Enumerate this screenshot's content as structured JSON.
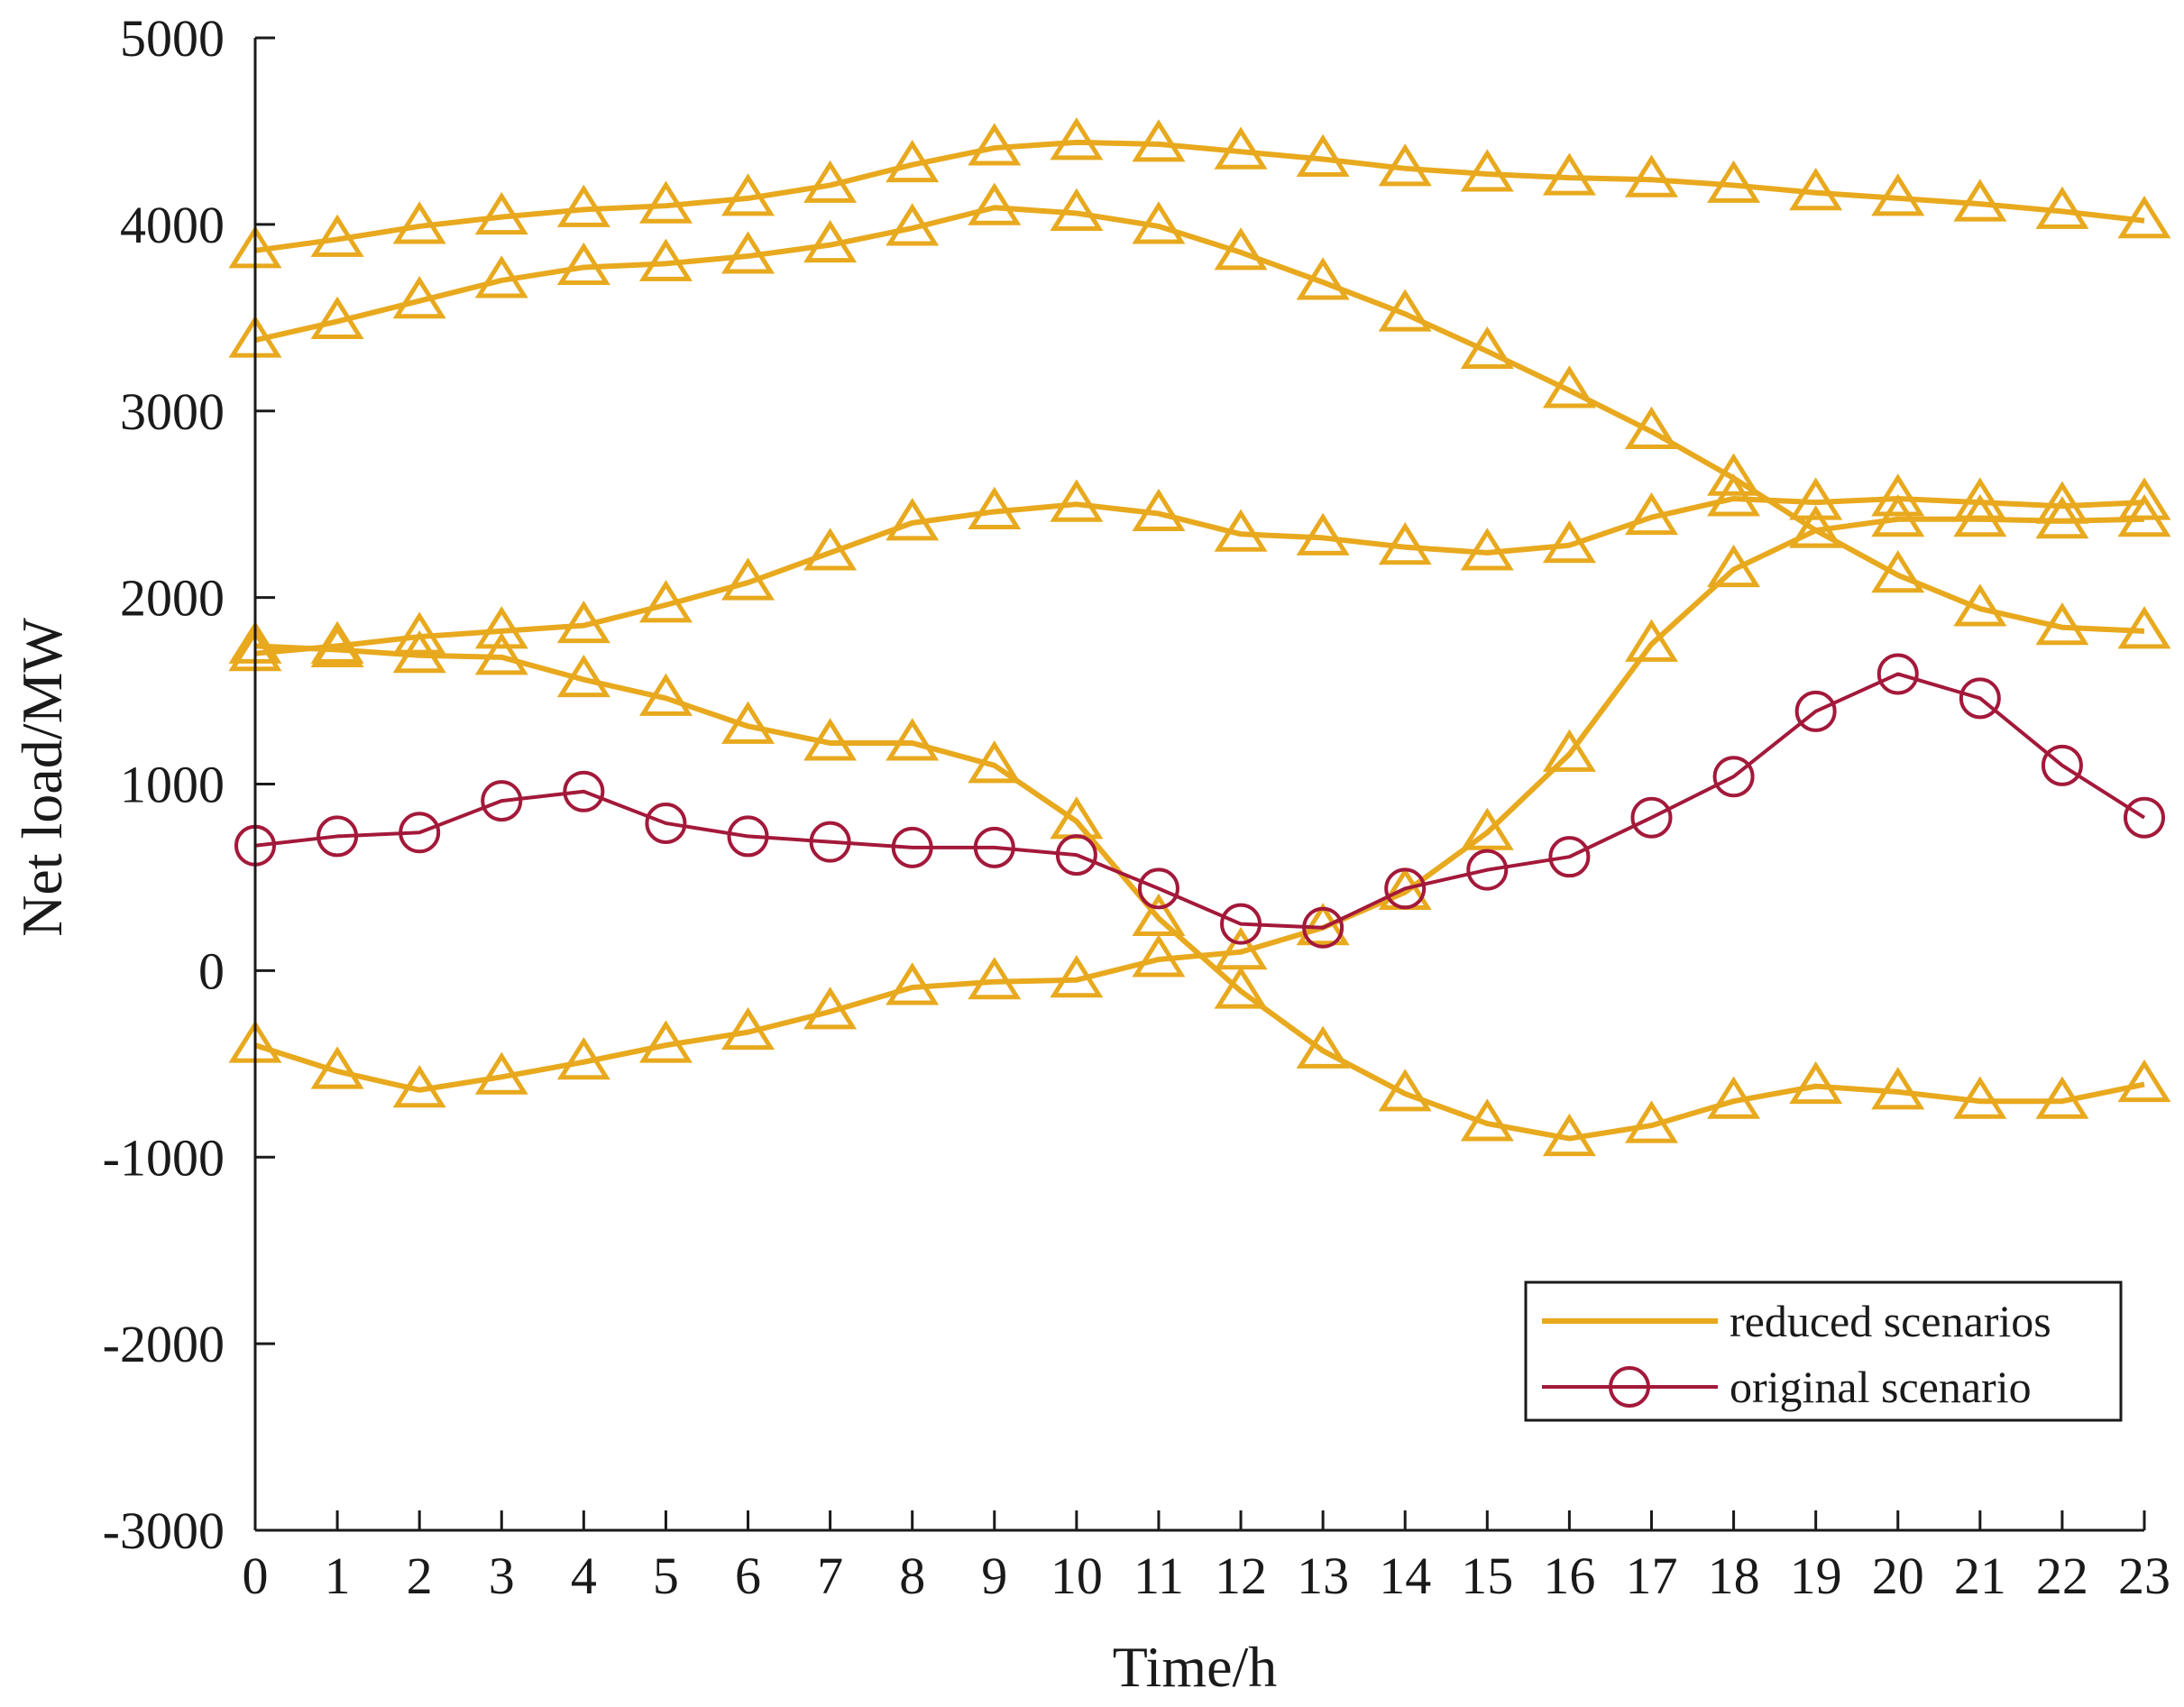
{
  "chart_data": {
    "type": "line",
    "title": "",
    "xlabel": "Time/h",
    "ylabel": "Net load/MW",
    "xlim": [
      0,
      23
    ],
    "ylim": [
      -3000,
      5000
    ],
    "x": [
      0,
      1,
      2,
      3,
      4,
      5,
      6,
      7,
      8,
      9,
      10,
      11,
      12,
      13,
      14,
      15,
      16,
      17,
      18,
      19,
      20,
      21,
      22,
      23
    ],
    "xticks": [
      "0",
      "1",
      "2",
      "3",
      "4",
      "5",
      "6",
      "7",
      "8",
      "9",
      "10",
      "11",
      "12",
      "13",
      "14",
      "15",
      "16",
      "17",
      "18",
      "19",
      "20",
      "21",
      "22",
      "23"
    ],
    "yticks": [
      "-3000",
      "-2000",
      "-1000",
      "0",
      "1000",
      "2000",
      "3000",
      "4000",
      "5000"
    ],
    "ytick_values": [
      -3000,
      -2000,
      -1000,
      0,
      1000,
      2000,
      3000,
      4000,
      5000
    ],
    "grid": false,
    "legend_position": "bottom-right",
    "series": [
      {
        "name": "reduced scenarios",
        "group": "reduced",
        "color": "#E8A91E",
        "marker": "triangle",
        "values": [
          3860,
          3920,
          3990,
          4040,
          4080,
          4100,
          4140,
          4210,
          4320,
          4410,
          4440,
          4430,
          4390,
          4350,
          4300,
          4270,
          4250,
          4240,
          4210,
          4170,
          4140,
          4110,
          4070,
          4020
        ]
      },
      {
        "name": "reduced scenarios",
        "group": "reduced",
        "color": "#E8A91E",
        "marker": "triangle",
        "values": [
          3380,
          3480,
          3590,
          3700,
          3770,
          3790,
          3830,
          3890,
          3980,
          4090,
          4060,
          3990,
          3850,
          3690,
          3520,
          3320,
          3110,
          2890,
          2640,
          2360,
          2120,
          1940,
          1840,
          1820
        ]
      },
      {
        "name": "reduced scenarios",
        "group": "reduced",
        "color": "#E8A91E",
        "marker": "triangle",
        "values": [
          1700,
          1740,
          1790,
          1820,
          1850,
          1960,
          2080,
          2240,
          2400,
          2460,
          2500,
          2450,
          2340,
          2320,
          2270,
          2240,
          2280,
          2430,
          2530,
          2510,
          2530,
          2510,
          2490,
          2510
        ]
      },
      {
        "name": "reduced scenarios",
        "group": "reduced",
        "color": "#E8A91E",
        "marker": "triangle",
        "values": [
          1740,
          1720,
          1690,
          1680,
          1560,
          1460,
          1310,
          1220,
          1220,
          1100,
          800,
          280,
          -110,
          -430,
          -660,
          -820,
          -900,
          -830,
          -700,
          -620,
          -650,
          -700,
          -700,
          -610
        ]
      },
      {
        "name": "reduced scenarios",
        "group": "reduced",
        "color": "#E8A91E",
        "marker": "triangle",
        "values": [
          -400,
          -540,
          -640,
          -570,
          -490,
          -400,
          -330,
          -220,
          -90,
          -60,
          -50,
          60,
          100,
          230,
          420,
          740,
          1160,
          1750,
          2150,
          2360,
          2420,
          2420,
          2410,
          2420
        ]
      },
      {
        "name": "original scenario",
        "group": "original",
        "color": "#A3193A",
        "marker": "circle",
        "values": [
          670,
          720,
          740,
          910,
          960,
          790,
          720,
          690,
          660,
          660,
          620,
          440,
          250,
          230,
          440,
          540,
          610,
          820,
          1040,
          1390,
          1590,
          1460,
          1100,
          820
        ]
      }
    ],
    "legend": [
      {
        "label": "reduced scenarios",
        "color": "#E8A91E",
        "marker": "none"
      },
      {
        "label": "original scenario",
        "color": "#A3193A",
        "marker": "circle"
      }
    ]
  }
}
